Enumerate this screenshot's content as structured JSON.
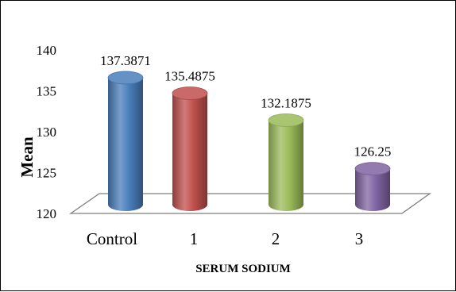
{
  "chart_data": {
    "type": "bar",
    "style": "3d-cylinder",
    "categories": [
      "Control",
      "1",
      "2",
      "3"
    ],
    "values": [
      137.3871,
      135.4875,
      132.1875,
      126.25
    ],
    "data_labels": [
      "137.3871",
      "135.4875",
      "132.1875",
      "126.25"
    ],
    "colors": [
      "#4a7ebb",
      "#c0504d",
      "#9bbb59",
      "#8064a2"
    ],
    "xlabel": "SERUM SODIUM",
    "ylabel": "Mean",
    "ylim": [
      120,
      140
    ],
    "yticks": [
      "140",
      "135",
      "130",
      "125",
      "120"
    ],
    "ytick_values": [
      140,
      135,
      130,
      125,
      120
    ],
    "grid": false,
    "legend": "none"
  }
}
